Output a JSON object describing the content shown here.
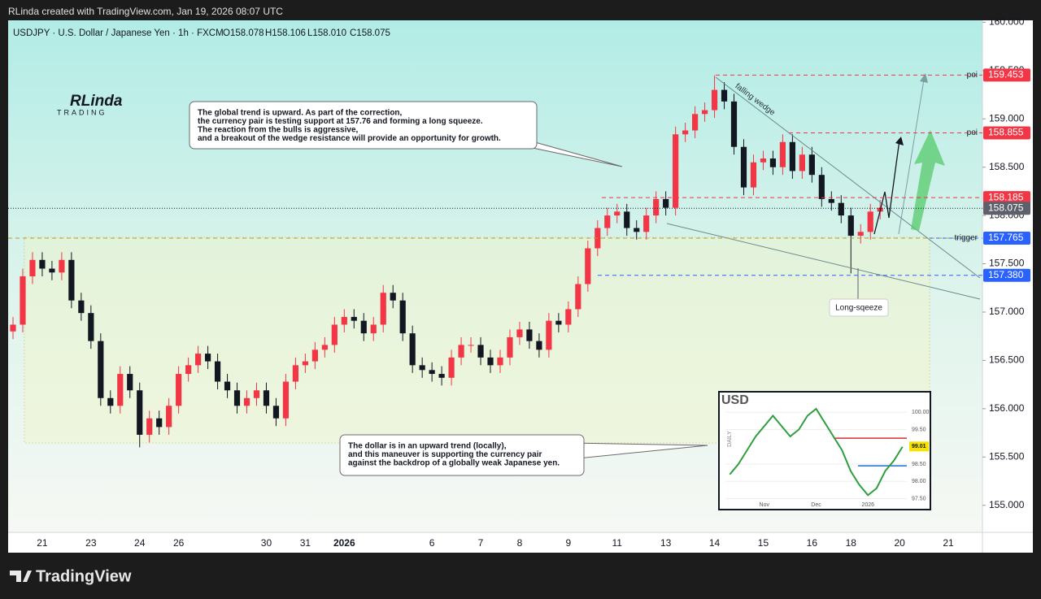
{
  "header": {
    "attribution": "RLinda created with TradingView.com, Jan 19, 2026 08:07 UTC"
  },
  "footer": {
    "brand": "TradingView"
  },
  "logo": {
    "name": "RLinda",
    "sub": "TRADING"
  },
  "chart_data": {
    "type": "candlestick",
    "title": "USDJPY · U.S. Dollar / Japanese Yen · 1h · FXCM",
    "legend_values": [
      "O158.078",
      "H158.106",
      "L158.010",
      "C158.075"
    ],
    "up_color": "#f23645",
    "down_color": "#131722",
    "categories": [
      null,
      null,
      null,
      "21",
      null,
      null,
      null,
      null,
      "23",
      null,
      null,
      null,
      null,
      "24",
      null,
      null,
      null,
      "26",
      null,
      null,
      null,
      null,
      null,
      null,
      null,
      null,
      "30",
      null,
      null,
      null,
      "31",
      null,
      null,
      null,
      "2026",
      null,
      null,
      null,
      null,
      null,
      null,
      null,
      null,
      "6",
      null,
      null,
      null,
      null,
      "7",
      null,
      null,
      null,
      "8",
      null,
      null,
      null,
      null,
      "9",
      null,
      null,
      null,
      null,
      "11",
      null,
      null,
      null,
      null,
      "13",
      null,
      null,
      null,
      null,
      "14",
      null,
      null,
      null,
      null,
      "15",
      null,
      null,
      null,
      null,
      "16",
      null,
      null,
      null,
      "18",
      null,
      null,
      null,
      null,
      "20",
      null,
      null,
      null,
      null,
      "21",
      null,
      null,
      null
    ],
    "open": [
      156.8,
      156.87,
      157.37,
      157.54,
      157.45,
      157.41,
      157.54,
      157.12,
      156.99,
      156.7,
      156.11,
      156.03,
      156.36,
      156.19,
      155.73,
      155.9,
      155.81,
      156.03,
      156.36,
      156.45,
      156.57,
      156.49,
      156.28,
      156.19,
      156.03,
      156.11,
      156.19,
      156.03,
      155.9,
      156.28,
      156.45,
      156.49,
      156.61,
      156.66,
      156.87,
      156.95,
      156.91,
      156.78,
      156.87,
      157.2,
      157.12,
      156.78,
      156.45,
      156.4,
      156.36,
      156.32,
      156.53,
      156.66,
      156.66,
      156.53,
      156.45,
      156.53,
      156.74,
      156.82,
      156.7,
      156.61,
      156.91,
      156.87,
      157.03,
      157.29,
      157.66,
      157.87,
      158.0,
      158.04,
      157.87,
      157.83,
      158.0,
      158.17,
      158.08,
      158.84,
      158.88,
      159.05,
      159.09,
      159.3,
      159.18,
      158.71,
      158.29,
      158.55,
      158.59,
      158.5,
      158.76,
      158.46,
      158.63,
      158.42,
      158.17,
      158.13,
      158.0,
      157.79,
      157.83,
      158.04,
      null,
      null,
      null,
      null,
      null,
      null,
      null,
      null,
      null,
      null
    ],
    "high": [
      156.95,
      157.45,
      157.62,
      157.62,
      157.53,
      157.62,
      157.62,
      157.2,
      157.07,
      156.78,
      156.19,
      156.44,
      156.44,
      156.27,
      155.98,
      155.98,
      156.11,
      156.44,
      156.53,
      156.65,
      156.65,
      156.57,
      156.36,
      156.27,
      156.19,
      156.27,
      156.27,
      156.11,
      156.36,
      156.53,
      156.57,
      156.69,
      156.74,
      156.95,
      157.03,
      157.03,
      156.99,
      156.95,
      157.28,
      157.28,
      157.2,
      156.86,
      156.53,
      156.48,
      156.44,
      156.61,
      156.74,
      156.74,
      156.74,
      156.61,
      156.61,
      156.82,
      156.9,
      156.9,
      156.78,
      156.99,
      156.99,
      157.11,
      157.37,
      157.74,
      157.95,
      158.08,
      158.12,
      158.12,
      157.95,
      158.08,
      158.25,
      158.25,
      158.92,
      158.96,
      159.13,
      159.17,
      159.45,
      159.38,
      159.26,
      158.79,
      158.63,
      158.67,
      158.67,
      158.84,
      158.84,
      158.71,
      158.71,
      158.5,
      158.25,
      158.21,
      158.08,
      157.91,
      158.12,
      158.16,
      null,
      null,
      null,
      null,
      null,
      null,
      null,
      null,
      null,
      null
    ],
    "low": [
      156.72,
      156.79,
      157.29,
      157.37,
      157.33,
      157.33,
      157.04,
      156.91,
      156.62,
      156.03,
      155.95,
      155.95,
      156.11,
      155.6,
      155.65,
      155.73,
      155.73,
      155.95,
      156.28,
      156.37,
      156.41,
      156.2,
      156.11,
      155.95,
      155.95,
      156.03,
      155.95,
      155.82,
      155.82,
      156.2,
      156.37,
      156.41,
      156.53,
      156.58,
      156.79,
      156.83,
      156.7,
      156.7,
      156.79,
      157.04,
      156.7,
      156.37,
      156.32,
      156.28,
      156.24,
      156.24,
      156.45,
      156.58,
      156.45,
      156.37,
      156.37,
      156.45,
      156.66,
      156.62,
      156.53,
      156.53,
      156.79,
      156.79,
      156.95,
      157.21,
      157.58,
      157.79,
      157.92,
      157.79,
      157.75,
      157.75,
      157.92,
      158.0,
      158.0,
      158.76,
      158.8,
      158.97,
      159.01,
      159.1,
      158.63,
      158.21,
      158.21,
      158.47,
      158.42,
      158.42,
      158.38,
      158.38,
      158.34,
      158.09,
      158.05,
      157.92,
      157.4,
      157.71,
      157.75,
      157.96,
      null,
      null,
      null,
      null,
      null,
      null,
      null,
      null,
      null,
      null
    ],
    "close": [
      156.87,
      157.37,
      157.54,
      157.45,
      157.41,
      157.54,
      157.12,
      156.99,
      156.7,
      156.11,
      156.03,
      156.36,
      156.19,
      155.73,
      155.9,
      155.81,
      156.03,
      156.36,
      156.45,
      156.57,
      156.49,
      156.28,
      156.19,
      156.03,
      156.11,
      156.19,
      156.03,
      155.9,
      156.28,
      156.45,
      156.49,
      156.61,
      156.66,
      156.87,
      156.95,
      156.91,
      156.78,
      156.87,
      157.2,
      157.12,
      156.78,
      156.45,
      156.4,
      156.36,
      156.32,
      156.53,
      156.66,
      156.66,
      156.53,
      156.45,
      156.53,
      156.74,
      156.82,
      156.7,
      156.61,
      156.91,
      156.87,
      157.03,
      157.29,
      157.66,
      157.87,
      158.0,
      158.04,
      157.87,
      157.83,
      158.0,
      158.17,
      158.08,
      158.84,
      158.88,
      159.05,
      159.09,
      159.3,
      159.18,
      158.71,
      158.29,
      158.55,
      158.59,
      158.5,
      158.76,
      158.46,
      158.63,
      158.42,
      158.17,
      158.13,
      158.0,
      157.79,
      157.83,
      158.04,
      158.08,
      null,
      null,
      null,
      null,
      null,
      null,
      null,
      null,
      null,
      null
    ],
    "ylim": [
      154.72,
      160.02
    ],
    "yticks": [
      {
        "value": 155,
        "label": "155.000"
      },
      {
        "value": 155.5,
        "label": "155.500"
      },
      {
        "value": 156,
        "label": "156.000"
      },
      {
        "value": 156.5,
        "label": "156.500"
      },
      {
        "value": 157,
        "label": "157.000"
      },
      {
        "value": 157.5,
        "label": "157.500"
      },
      {
        "value": 158,
        "label": "158.000"
      },
      {
        "value": 158.5,
        "label": "158.500"
      },
      {
        "value": 159,
        "label": "159.000"
      },
      {
        "value": 159.5,
        "label": "159.500"
      },
      {
        "value": 160,
        "label": "160.000"
      }
    ],
    "levels": [
      {
        "price": 159.453,
        "color": "#f23645",
        "note": "poi"
      },
      {
        "price": 158.855,
        "color": "#f23645",
        "note": "poi"
      },
      {
        "price": 158.185,
        "color": "#f23645"
      },
      {
        "price": 158.075,
        "color": "#5d606b"
      },
      {
        "price": 157.765,
        "color": "#2962ff",
        "note": "trigger"
      },
      {
        "price": {
          "value": 157.38,
          "label": "157.380"
        },
        "color": "#2962ff"
      }
    ],
    "annotations": {
      "callout1": [
        "The global trend is upward. As part of the correction,",
        "the currency pair is testing support at 157.76 and forming a long squeeze.",
        "The reaction from the bulls is aggressive,",
        "and a breakout of the wedge resistance will provide an opportunity for growth."
      ],
      "callout2": [
        "The dollar is in an upward trend (locally),",
        "and this maneuver is supporting the currency pair",
        "against the backdrop of a globally weak Japanese yen."
      ],
      "wedge": "falling wedge",
      "squeeze": "Long-sqeeze"
    }
  },
  "inset": {
    "title": "USD",
    "side_label": "DAILY",
    "categories": [
      null,
      null,
      null,
      null,
      "Nov",
      null,
      null,
      null,
      null,
      null,
      "Dec",
      null,
      null,
      null,
      null,
      null,
      "2026",
      null,
      null,
      null,
      null
    ],
    "values": [
      98.2,
      98.5,
      98.9,
      99.3,
      99.6,
      99.9,
      99.6,
      99.3,
      99.5,
      99.9,
      100.1,
      99.7,
      99.3,
      98.9,
      98.3,
      97.9,
      97.6,
      97.8,
      98.3,
      98.6,
      99.0
    ],
    "ylim": [
      97.3,
      100.5
    ],
    "yticks": [
      {
        "value": 97.5,
        "label": "97.50"
      },
      {
        "value": 98,
        "label": "98.00"
      },
      {
        "value": 98.5,
        "label": "98.50"
      },
      {
        "value": 99.5,
        "label": "99.50"
      },
      {
        "value": 100,
        "label": "100.00"
      }
    ],
    "current": 99.01,
    "levels": [
      {
        "value": 99.25,
        "color": "#d32f2f"
      },
      {
        "value": 98.45,
        "color": "#1e6fd9"
      }
    ]
  }
}
